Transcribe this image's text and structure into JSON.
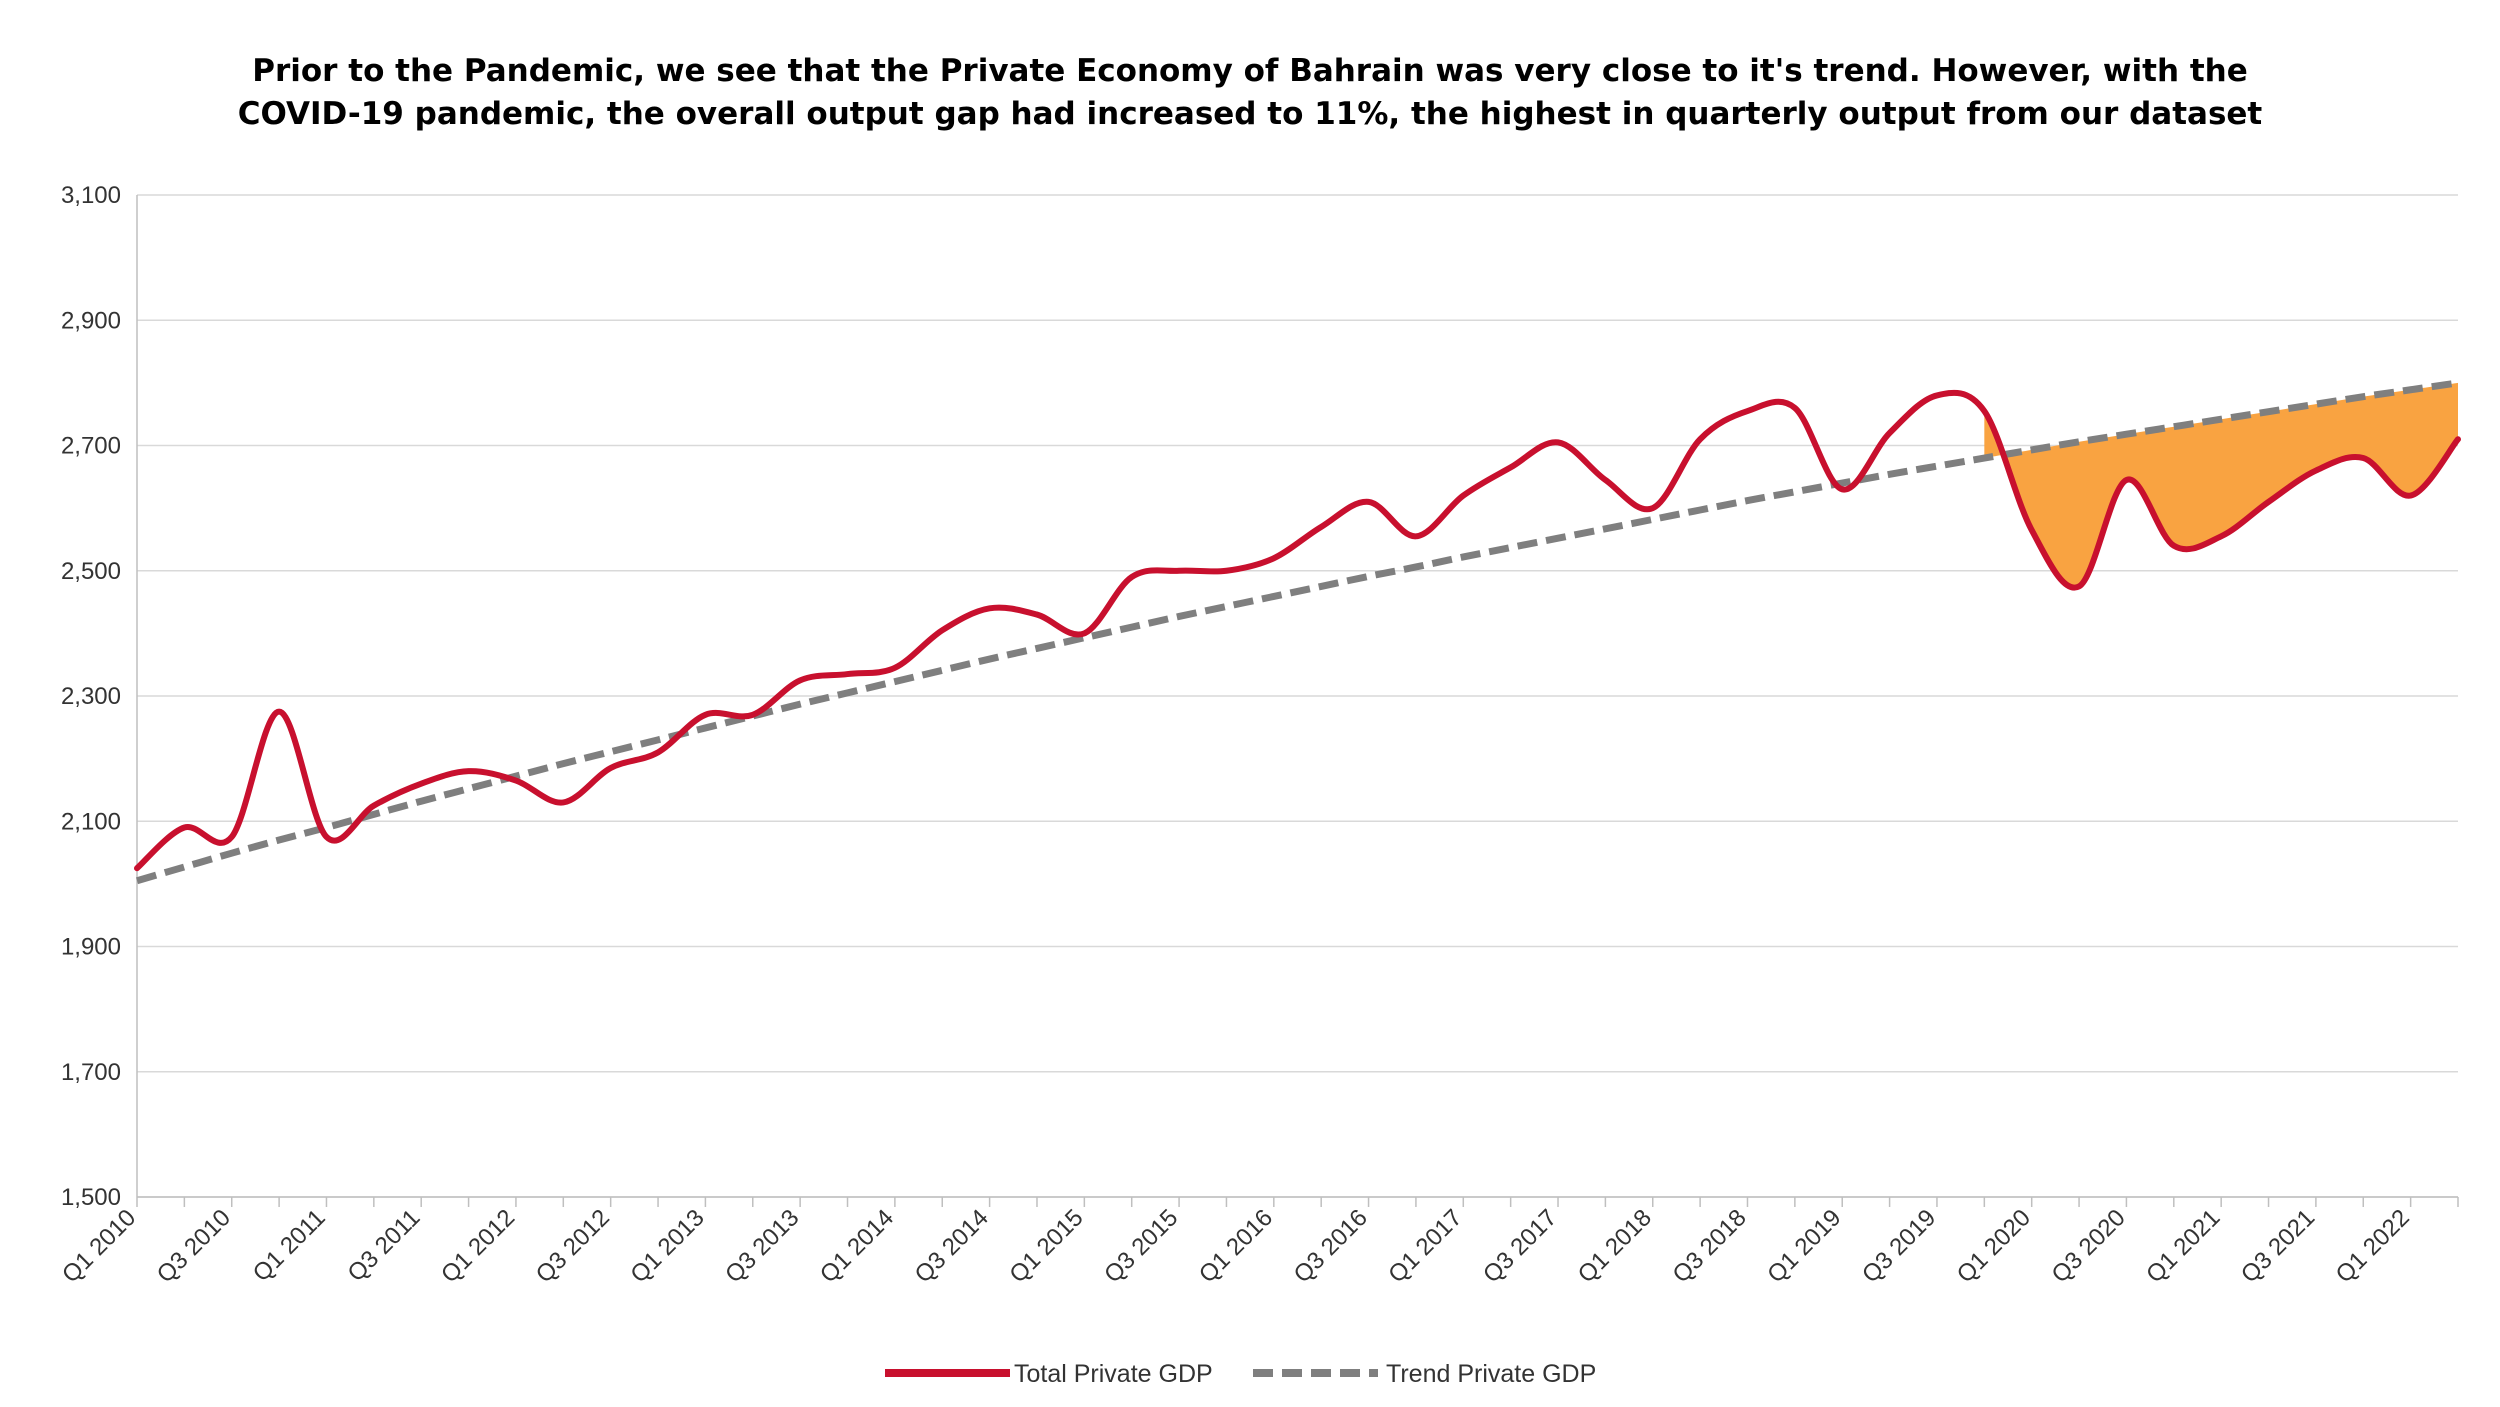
{
  "chart_data": {
    "type": "line",
    "title": "Prior to the Pandemic, we see that the Private Economy of Bahrain was very close to it's trend. However, with the COVID-19 pandemic, the overall output gap had increased to 11%, the highest in quarterly output from our dataset",
    "title_lines": [
      "Prior to the Pandemic, we see that the Private Economy of Bahrain was very close to it's trend. However, with the",
      "COVID-19 pandemic, the overall output gap had increased to 11%, the highest in quarterly output from our dataset"
    ],
    "xlabel": "",
    "ylabel": "",
    "ylim": [
      1500,
      3100
    ],
    "yticks": [
      1500,
      1700,
      1900,
      2100,
      2300,
      2500,
      2700,
      2900,
      3100
    ],
    "ytick_labels": [
      "1,500",
      "1,700",
      "1,900",
      "2,100",
      "2,300",
      "2,500",
      "2,700",
      "2,900",
      "3,100"
    ],
    "categories": [
      "Q1 2010",
      "Q2 2010",
      "Q3 2010",
      "Q4 2010",
      "Q1 2011",
      "Q2 2011",
      "Q3 2011",
      "Q4 2011",
      "Q1 2012",
      "Q2 2012",
      "Q3 2012",
      "Q4 2012",
      "Q1 2013",
      "Q2 2013",
      "Q3 2013",
      "Q4 2013",
      "Q1 2014",
      "Q2 2014",
      "Q3 2014",
      "Q4 2014",
      "Q1 2015",
      "Q2 2015",
      "Q3 2015",
      "Q4 2015",
      "Q1 2016",
      "Q2 2016",
      "Q3 2016",
      "Q4 2016",
      "Q1 2017",
      "Q2 2017",
      "Q3 2017",
      "Q4 2017",
      "Q1 2018",
      "Q2 2018",
      "Q3 2018",
      "Q4 2018",
      "Q1 2019",
      "Q2 2019",
      "Q3 2019",
      "Q4 2019",
      "Q1 2020",
      "Q2 2020",
      "Q3 2020",
      "Q4 2020",
      "Q1 2021",
      "Q2 2021",
      "Q3 2021",
      "Q4 2021",
      "Q1 2022",
      "Q2 2022"
    ],
    "shown_tick_labels": [
      "Q1 2010",
      "Q3 2010",
      "Q1 2011",
      "Q3 2011",
      "Q1 2012",
      "Q3 2012",
      "Q1 2013",
      "Q3 2013",
      "Q1 2014",
      "Q3 2014",
      "Q1 2015",
      "Q3 2015",
      "Q1 2016",
      "Q3 2016",
      "Q1 2017",
      "Q3 2017",
      "Q1 2018",
      "Q3 2018",
      "Q1 2019",
      "Q3 2019",
      "Q1 2020",
      "Q3 2020",
      "Q1 2021",
      "Q3 2021",
      "Q1 2022"
    ],
    "series": [
      {
        "name": "Total Private GDP",
        "color": "#c8102e",
        "style": "solid",
        "values": [
          2025,
          2090,
          2075,
          2275,
          2075,
          2125,
          2160,
          2180,
          2165,
          2130,
          2185,
          2210,
          2270,
          2270,
          2325,
          2335,
          2345,
          2405,
          2440,
          2430,
          2400,
          2490,
          2500,
          2500,
          2520,
          2570,
          2610,
          2555,
          2620,
          2665,
          2705,
          2645,
          2600,
          2710,
          2755,
          2760,
          2630,
          2720,
          2780,
          2755,
          2565,
          2475,
          2645,
          2540,
          2555,
          2610,
          2660,
          2680,
          2620,
          2710
        ]
      },
      {
        "name": "Trend Private GDP",
        "color": "#7f7f7f",
        "style": "dashed",
        "values": [
          2005,
          2027,
          2049,
          2070,
          2090,
          2111,
          2132,
          2152,
          2172,
          2192,
          2211,
          2230,
          2249,
          2268,
          2287,
          2305,
          2323,
          2341,
          2359,
          2376,
          2393,
          2410,
          2427,
          2443,
          2459,
          2475,
          2491,
          2506,
          2522,
          2537,
          2552,
          2567,
          2582,
          2597,
          2612,
          2626,
          2640,
          2654,
          2667,
          2680,
          2693,
          2706,
          2718,
          2730,
          2742,
          2754,
          2766,
          2778,
          2789,
          2800
        ]
      }
    ],
    "shaded_gap": {
      "from_category": "Q4 2019",
      "to_category": "Q2 2022",
      "color": "#f9a341"
    },
    "grid": true,
    "legend_position": "bottom-center"
  }
}
